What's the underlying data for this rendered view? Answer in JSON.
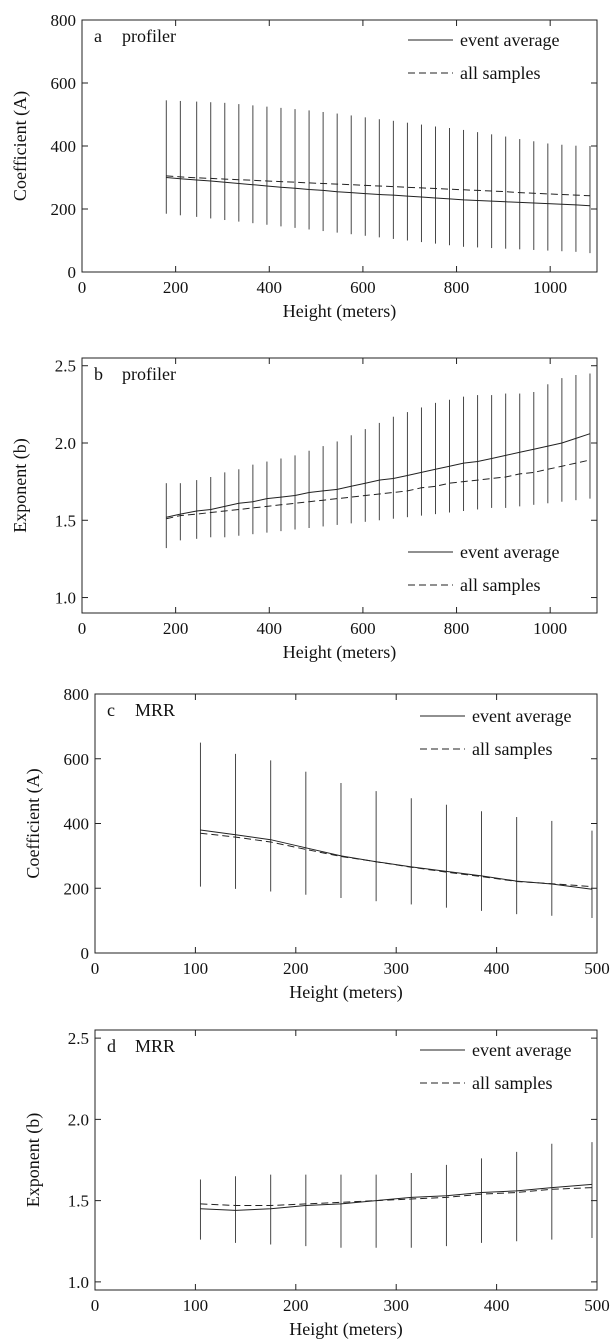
{
  "chart_data": [
    {
      "type": "line",
      "panel_label": "a",
      "title": "profiler",
      "xlabel": "Height (meters)",
      "ylabel": "Coefficient (A)",
      "xlim": [
        0,
        1100
      ],
      "ylim": [
        0,
        800
      ],
      "xticks": [
        0,
        200,
        400,
        600,
        800,
        1000
      ],
      "yticks": [
        0,
        200,
        400,
        600,
        800
      ],
      "legend_position": "top-right",
      "grid": false,
      "series": [
        {
          "name": "event average",
          "style": "solid",
          "x": [
            180,
            210,
            245,
            275,
            305,
            335,
            365,
            395,
            425,
            455,
            485,
            515,
            545,
            575,
            605,
            635,
            665,
            695,
            725,
            755,
            785,
            815,
            845,
            875,
            905,
            935,
            965,
            995,
            1025,
            1055,
            1085
          ],
          "y": [
            300,
            296,
            292,
            289,
            285,
            281,
            277,
            273,
            269,
            266,
            262,
            259,
            255,
            252,
            249,
            246,
            244,
            241,
            238,
            235,
            232,
            229,
            227,
            225,
            223,
            221,
            219,
            217,
            215,
            213,
            210
          ]
        },
        {
          "name": "all samples",
          "style": "dashed",
          "x": [
            180,
            210,
            245,
            275,
            305,
            335,
            365,
            395,
            425,
            455,
            485,
            515,
            545,
            575,
            605,
            635,
            665,
            695,
            725,
            755,
            785,
            815,
            845,
            875,
            905,
            935,
            965,
            995,
            1025,
            1055,
            1085
          ],
          "y": [
            305,
            302,
            299,
            297,
            295,
            293,
            291,
            289,
            287,
            285,
            283,
            281,
            279,
            277,
            275,
            273,
            271,
            269,
            267,
            265,
            263,
            261,
            259,
            257,
            255,
            252,
            250,
            248,
            246,
            244,
            242
          ]
        }
      ],
      "error_bars": {
        "x": [
          180,
          210,
          245,
          275,
          305,
          335,
          365,
          395,
          425,
          455,
          485,
          515,
          545,
          575,
          605,
          635,
          665,
          695,
          725,
          755,
          785,
          815,
          845,
          875,
          905,
          935,
          965,
          995,
          1025,
          1055,
          1085
        ],
        "low": [
          185,
          180,
          175,
          170,
          165,
          160,
          155,
          150,
          145,
          140,
          135,
          130,
          125,
          120,
          115,
          110,
          105,
          100,
          95,
          90,
          85,
          80,
          78,
          76,
          74,
          72,
          70,
          68,
          66,
          64,
          60
        ],
        "high": [
          545,
          543,
          541,
          539,
          537,
          533,
          529,
          525,
          521,
          517,
          513,
          508,
          503,
          497,
          491,
          485,
          480,
          474,
          468,
          462,
          457,
          451,
          444,
          437,
          430,
          422,
          415,
          408,
          404,
          401,
          400
        ]
      }
    },
    {
      "type": "line",
      "panel_label": "b",
      "title": "profiler",
      "xlabel": "Height (meters)",
      "ylabel": "Exponent (b)",
      "xlim": [
        0,
        1100
      ],
      "ylim": [
        0.9,
        2.55
      ],
      "xticks": [
        0,
        200,
        400,
        600,
        800,
        1000
      ],
      "yticks": [
        1.0,
        1.5,
        2.0,
        2.5
      ],
      "ytick_labels": [
        "1.0",
        "1.5",
        "2.0",
        "2.5"
      ],
      "legend_position": "bottom-right",
      "grid": false,
      "series": [
        {
          "name": "event average",
          "style": "solid",
          "x": [
            180,
            210,
            245,
            275,
            305,
            335,
            365,
            395,
            425,
            455,
            485,
            515,
            545,
            575,
            605,
            635,
            665,
            695,
            725,
            755,
            785,
            815,
            845,
            875,
            905,
            935,
            965,
            995,
            1025,
            1055,
            1085
          ],
          "y": [
            1.52,
            1.54,
            1.56,
            1.57,
            1.59,
            1.61,
            1.62,
            1.64,
            1.65,
            1.66,
            1.68,
            1.69,
            1.7,
            1.72,
            1.74,
            1.76,
            1.77,
            1.79,
            1.81,
            1.83,
            1.85,
            1.87,
            1.88,
            1.9,
            1.92,
            1.94,
            1.96,
            1.98,
            2.0,
            2.03,
            2.06
          ]
        },
        {
          "name": "all samples",
          "style": "dashed",
          "x": [
            180,
            210,
            245,
            275,
            305,
            335,
            365,
            395,
            425,
            455,
            485,
            515,
            545,
            575,
            605,
            635,
            665,
            695,
            725,
            755,
            785,
            815,
            845,
            875,
            905,
            935,
            965,
            995,
            1025,
            1055,
            1085
          ],
          "y": [
            1.51,
            1.53,
            1.54,
            1.55,
            1.56,
            1.57,
            1.58,
            1.59,
            1.6,
            1.61,
            1.62,
            1.63,
            1.64,
            1.65,
            1.66,
            1.67,
            1.68,
            1.69,
            1.71,
            1.72,
            1.74,
            1.75,
            1.76,
            1.77,
            1.78,
            1.8,
            1.81,
            1.83,
            1.85,
            1.87,
            1.89
          ]
        }
      ],
      "error_bars": {
        "x": [
          180,
          210,
          245,
          275,
          305,
          335,
          365,
          395,
          425,
          455,
          485,
          515,
          545,
          575,
          605,
          635,
          665,
          695,
          725,
          755,
          785,
          815,
          845,
          875,
          905,
          935,
          965,
          995,
          1025,
          1055,
          1085
        ],
        "low": [
          1.32,
          1.37,
          1.38,
          1.39,
          1.39,
          1.4,
          1.41,
          1.42,
          1.43,
          1.44,
          1.45,
          1.46,
          1.47,
          1.48,
          1.49,
          1.5,
          1.51,
          1.52,
          1.53,
          1.54,
          1.55,
          1.56,
          1.57,
          1.58,
          1.58,
          1.59,
          1.6,
          1.61,
          1.62,
          1.63,
          1.64
        ],
        "high": [
          1.74,
          1.74,
          1.76,
          1.78,
          1.81,
          1.83,
          1.86,
          1.88,
          1.9,
          1.92,
          1.95,
          1.98,
          2.01,
          2.05,
          2.09,
          2.13,
          2.17,
          2.2,
          2.23,
          2.26,
          2.28,
          2.3,
          2.31,
          2.31,
          2.32,
          2.32,
          2.33,
          2.38,
          2.42,
          2.44,
          2.45
        ]
      }
    },
    {
      "type": "line",
      "panel_label": "c",
      "title": "MRR",
      "xlabel": "Height (meters)",
      "ylabel": "Coefficient (A)",
      "xlim": [
        0,
        500
      ],
      "ylim": [
        0,
        800
      ],
      "xticks": [
        0,
        100,
        200,
        300,
        400,
        500
      ],
      "yticks": [
        0,
        200,
        400,
        600,
        800
      ],
      "legend_position": "top-right",
      "grid": false,
      "series": [
        {
          "name": "event average",
          "style": "solid",
          "x": [
            105,
            140,
            175,
            210,
            245,
            280,
            315,
            350,
            385,
            420,
            455,
            495
          ],
          "y": [
            380,
            365,
            350,
            325,
            300,
            282,
            266,
            252,
            238,
            222,
            213,
            197
          ]
        },
        {
          "name": "all samples",
          "style": "dashed",
          "x": [
            105,
            140,
            175,
            210,
            245,
            280,
            315,
            350,
            385,
            420,
            455,
            495
          ],
          "y": [
            370,
            358,
            343,
            320,
            298,
            282,
            265,
            250,
            236,
            221,
            214,
            205
          ]
        }
      ],
      "error_bars": {
        "x": [
          105,
          140,
          175,
          210,
          245,
          280,
          315,
          350,
          385,
          420,
          455,
          495
        ],
        "low": [
          205,
          198,
          190,
          180,
          170,
          160,
          150,
          140,
          130,
          120,
          115,
          108
        ],
        "high": [
          650,
          615,
          595,
          560,
          525,
          500,
          478,
          458,
          438,
          420,
          408,
          378
        ]
      }
    },
    {
      "type": "line",
      "panel_label": "d",
      "title": "MRR",
      "xlabel": "Height (meters)",
      "ylabel": "Exponent (b)",
      "xlim": [
        0,
        500
      ],
      "ylim": [
        0.95,
        2.55
      ],
      "xticks": [
        0,
        100,
        200,
        300,
        400,
        500
      ],
      "yticks": [
        1.0,
        1.5,
        2.0,
        2.5
      ],
      "ytick_labels": [
        "1.0",
        "1.5",
        "2.0",
        "2.5"
      ],
      "legend_position": "top-right",
      "grid": false,
      "series": [
        {
          "name": "event average",
          "style": "solid",
          "x": [
            105,
            140,
            175,
            210,
            245,
            280,
            315,
            350,
            385,
            420,
            455,
            495
          ],
          "y": [
            1.45,
            1.44,
            1.45,
            1.47,
            1.48,
            1.5,
            1.52,
            1.53,
            1.55,
            1.56,
            1.58,
            1.6
          ]
        },
        {
          "name": "all samples",
          "style": "dashed",
          "x": [
            105,
            140,
            175,
            210,
            245,
            280,
            315,
            350,
            385,
            420,
            455,
            495
          ],
          "y": [
            1.48,
            1.47,
            1.47,
            1.48,
            1.49,
            1.5,
            1.51,
            1.52,
            1.54,
            1.55,
            1.57,
            1.58
          ]
        }
      ],
      "error_bars": {
        "x": [
          105,
          140,
          175,
          210,
          245,
          280,
          315,
          350,
          385,
          420,
          455,
          495
        ],
        "low": [
          1.26,
          1.24,
          1.23,
          1.22,
          1.21,
          1.21,
          1.21,
          1.22,
          1.24,
          1.25,
          1.26,
          1.27
        ],
        "high": [
          1.63,
          1.65,
          1.66,
          1.66,
          1.66,
          1.66,
          1.67,
          1.72,
          1.76,
          1.8,
          1.85,
          1.86
        ]
      }
    }
  ]
}
